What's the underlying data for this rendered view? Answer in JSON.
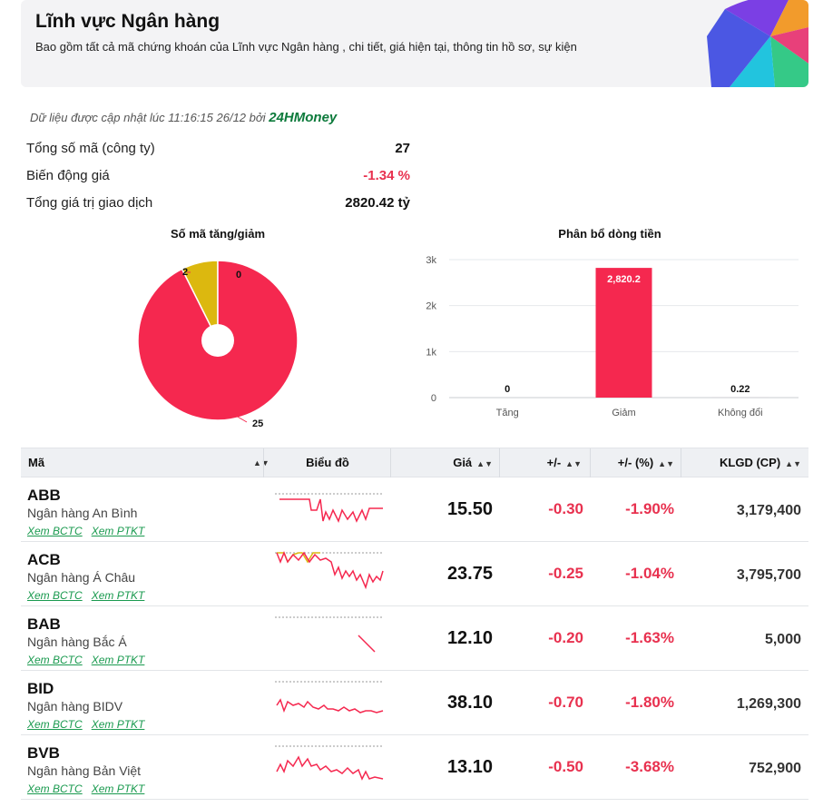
{
  "header": {
    "title": "Lĩnh vực Ngân hàng",
    "description": "Bao gồm tất cả mã chứng khoán của Lĩnh vực Ngân hàng , chi tiết, giá hiện tại, thông tin hồ sơ, sự kiện"
  },
  "updated": {
    "text": "Dữ liệu được cập nhật lúc 11:16:15 26/12 bởi",
    "brand": "24HMoney"
  },
  "stats": [
    {
      "label": "Tổng số mã (công ty)",
      "value": "27"
    },
    {
      "label": "Biến động giá",
      "value": "-1.34 %"
    },
    {
      "label": "Tổng giá trị giao dịch",
      "value": "2820.42 tỷ"
    }
  ],
  "colors": {
    "up": "#dcb80f",
    "down": "#f5284f",
    "neutral": "#f0a500",
    "link": "#1a9a4f",
    "brand": "#0c7a3b"
  },
  "chart_data": [
    {
      "type": "pie",
      "title": "Số mã tăng/giảm",
      "categories": [
        "Giảm",
        "Tăng",
        "Không đổi"
      ],
      "values": [
        25,
        2,
        0
      ],
      "labels": [
        "25",
        "2",
        "0"
      ],
      "colors": [
        "#f5284f",
        "#dcb80f",
        "#f0a500"
      ]
    },
    {
      "type": "bar",
      "title": "Phân bổ dòng tiền",
      "categories": [
        "Tăng",
        "Giảm",
        "Không đổi"
      ],
      "values": [
        0,
        2820.2,
        0.22
      ],
      "data_labels": [
        "0",
        "2,820.2",
        "0.22"
      ],
      "ylim": [
        0,
        3000
      ],
      "yticks": [
        "0",
        "1k",
        "2k",
        "3k"
      ],
      "ytick_values": [
        0,
        1000,
        2000,
        3000
      ],
      "grid": true,
      "colors": [
        "#f5284f"
      ]
    }
  ],
  "table": {
    "headers": {
      "symbol": "Mã",
      "chart": "Biểu đồ",
      "price": "Giá",
      "change": "+/-",
      "pct": "+/- (%)",
      "volume": "KLGD (CP)"
    },
    "link_bctc": "Xem BCTC",
    "link_ptkt": "Xem PTKT",
    "rows": [
      {
        "symbol": "ABB",
        "name": "Ngân hàng An Bình",
        "price": "15.50",
        "change": "-0.30",
        "pct": "-1.90%",
        "volume": "3,179,400"
      },
      {
        "symbol": "ACB",
        "name": "Ngân hàng Á Châu",
        "price": "23.75",
        "change": "-0.25",
        "pct": "-1.04%",
        "volume": "3,795,700"
      },
      {
        "symbol": "BAB",
        "name": "Ngân hàng Bắc Á",
        "price": "12.10",
        "change": "-0.20",
        "pct": "-1.63%",
        "volume": "5,000"
      },
      {
        "symbol": "BID",
        "name": "Ngân hàng BIDV",
        "price": "38.10",
        "change": "-0.70",
        "pct": "-1.80%",
        "volume": "1,269,300"
      },
      {
        "symbol": "BVB",
        "name": "Ngân hàng Bản Việt",
        "price": "13.10",
        "change": "-0.50",
        "pct": "-3.68%",
        "volume": "752,900"
      }
    ]
  }
}
